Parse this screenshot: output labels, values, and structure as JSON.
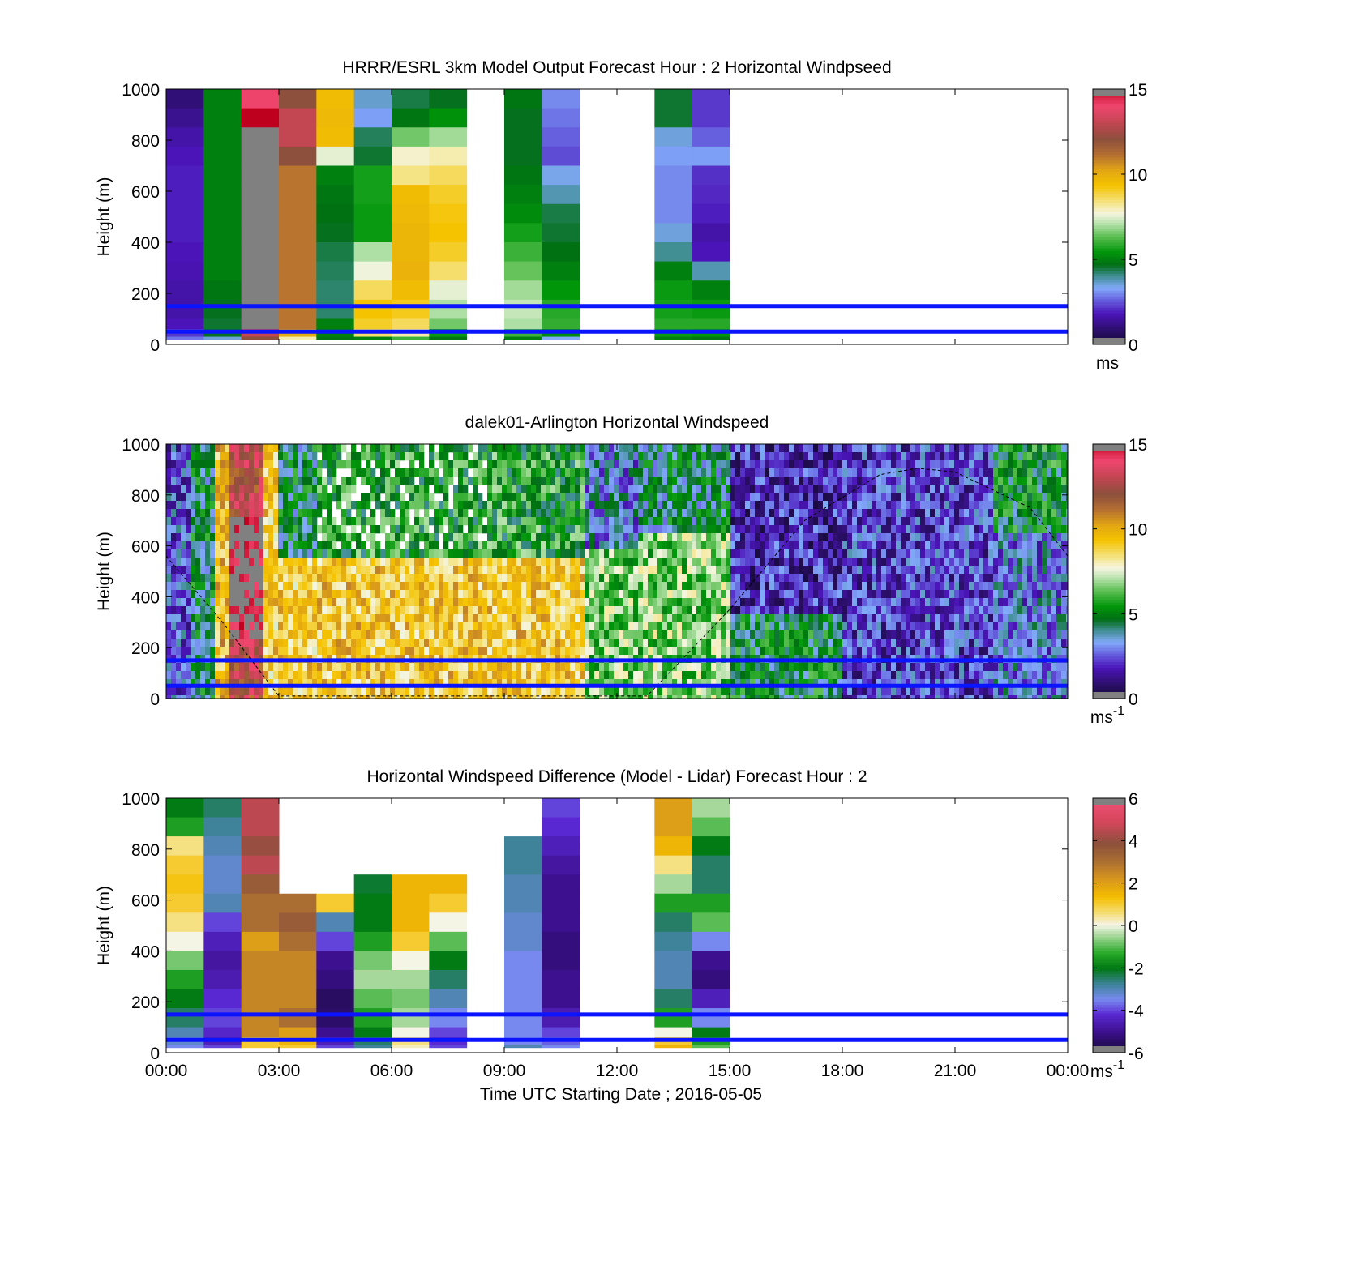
{
  "figure": {
    "xlabel": "Time UTC  Starting Date ; 2016-05-05"
  },
  "chart_data": [
    {
      "type": "heatmap",
      "title": "HRRR/ESRL 3km Model Output   Forecast Hour : 2 Horizontal Windpseed",
      "ylabel": "Height (m)",
      "xlim_hours": [
        0,
        24
      ],
      "ylim": [
        0,
        1000
      ],
      "yticks": [
        0,
        200,
        400,
        600,
        800,
        1000
      ],
      "xticks_labels": [
        "00:00",
        "03:00",
        "06:00",
        "09:00",
        "12:00",
        "15:00",
        "18:00",
        "21:00",
        "00:00"
      ],
      "show_xtick_labels": false,
      "heights": [
        1000,
        925,
        850,
        775,
        700,
        625,
        550,
        475,
        400,
        325,
        250,
        175,
        100,
        60,
        30
      ],
      "columns": [
        {
          "hour": 0,
          "values": [
            1.0,
            1.3,
            1.6,
            1.8,
            1.9,
            1.9,
            1.9,
            1.9,
            1.8,
            1.7,
            1.6,
            1.6,
            1.8,
            2.2,
            2.8
          ]
        },
        {
          "hour": 1,
          "values": [
            5.0,
            5.0,
            5.0,
            5.0,
            5.0,
            5.0,
            5.0,
            5.0,
            5.0,
            5.0,
            4.8,
            4.6,
            4.5,
            4.6,
            3.5
          ]
        },
        {
          "hour": 2,
          "values": [
            14.0,
            15.0,
            16.0,
            16.0,
            16.0,
            16.0,
            16.0,
            16.0,
            16.0,
            16.0,
            16.0,
            16.0,
            16.0,
            13.0,
            12.0
          ]
        },
        {
          "hour": 3,
          "values": [
            12.0,
            13.0,
            13.0,
            12.0,
            11.0,
            11.0,
            11.0,
            11.0,
            11.0,
            11.0,
            11.0,
            11.0,
            11.0,
            10.0,
            8.0
          ]
        },
        {
          "hour": 4,
          "values": [
            9.5,
            9.6,
            9.5,
            7.5,
            5.0,
            4.8,
            4.7,
            4.6,
            4.4,
            4.3,
            4.2,
            4.2,
            5.0,
            5.0,
            4.8
          ]
        },
        {
          "hour": 5,
          "values": [
            3.6,
            3.2,
            4.3,
            4.5,
            5.6,
            5.6,
            5.5,
            5.5,
            7.0,
            7.6,
            8.6,
            9.3,
            9.0,
            8.5,
            5.0
          ]
        },
        {
          "hour": 6,
          "values": [
            4.4,
            4.8,
            6.5,
            7.8,
            8.3,
            9.5,
            9.6,
            9.7,
            9.7,
            9.8,
            9.5,
            9.1,
            8.6,
            8.0,
            6.0
          ]
        },
        {
          "hour": 7,
          "values": [
            4.6,
            5.3,
            6.9,
            8.0,
            8.6,
            9.0,
            9.2,
            9.3,
            9.0,
            8.5,
            7.5,
            7.0,
            6.5,
            5.5,
            4.8
          ]
        },
        {
          "hour": 9,
          "values": [
            4.8,
            4.6,
            4.6,
            4.6,
            4.8,
            5.0,
            5.2,
            5.6,
            6.0,
            6.4,
            6.9,
            7.2,
            7.0,
            6.0,
            5.0
          ]
        },
        {
          "hour": 10,
          "values": [
            3.0,
            2.8,
            2.6,
            2.4,
            3.4,
            3.8,
            4.4,
            4.5,
            4.7,
            5.0,
            5.4,
            5.8,
            5.9,
            5.2,
            3.3
          ]
        },
        {
          "hour": 13,
          "values": [
            4.5,
            4.5,
            3.5,
            3.2,
            3.0,
            3.0,
            3.0,
            3.5,
            4.0,
            5.0,
            5.5,
            5.6,
            5.8,
            5.5,
            5.0
          ]
        },
        {
          "hour": 14,
          "values": [
            2.2,
            2.2,
            2.6,
            3.2,
            2.1,
            2.0,
            1.9,
            1.6,
            1.8,
            3.8,
            5.0,
            5.5,
            5.8,
            5.4,
            4.8
          ]
        }
      ],
      "cmap_range": [
        0,
        15
      ],
      "cbar_ticks": [
        0,
        5,
        10,
        15
      ],
      "cbar_unit": "ms",
      "cbar_unit_sup": "",
      "hlines_m": [
        150,
        50
      ]
    },
    {
      "type": "heatmap",
      "title": "dalek01-Arlington  Horizontal Windspeed",
      "ylabel": "Height (m)",
      "xlim_hours": [
        0,
        24
      ],
      "ylim": [
        0,
        1000
      ],
      "yticks": [
        0,
        200,
        400,
        600,
        800,
        1000
      ],
      "xticks_labels": [
        "00:00",
        "03:00",
        "06:00",
        "09:00",
        "12:00",
        "15:00",
        "18:00",
        "21:00",
        "00:00"
      ],
      "show_xtick_labels": false,
      "cmap_range": [
        0,
        15
      ],
      "cbar_ticks": [
        0,
        5,
        10,
        15
      ],
      "cbar_unit": "ms",
      "cbar_unit_sup": "-1",
      "hlines_m": [
        150,
        50
      ],
      "boundary_layer_curve": [
        [
          0.0,
          560
        ],
        [
          1.5,
          300
        ],
        [
          3.0,
          10
        ],
        [
          12.8,
          10
        ],
        [
          15.0,
          350
        ],
        [
          17.0,
          700
        ],
        [
          19.0,
          880
        ],
        [
          20.0,
          905
        ],
        [
          21.0,
          890
        ],
        [
          23.0,
          750
        ],
        [
          24.0,
          560
        ]
      ]
    },
    {
      "type": "heatmap",
      "title": "Horizontal Windspeed Difference (Model - Lidar) Forecast Hour : 2",
      "ylabel": "Height (m)",
      "xlim_hours": [
        0,
        24
      ],
      "ylim": [
        0,
        1000
      ],
      "yticks": [
        0,
        200,
        400,
        600,
        800,
        1000
      ],
      "xticks_labels": [
        "00:00",
        "03:00",
        "06:00",
        "09:00",
        "12:00",
        "15:00",
        "18:00",
        "21:00",
        "00:00"
      ],
      "show_xtick_labels": true,
      "heights": [
        1000,
        925,
        850,
        775,
        700,
        625,
        550,
        475,
        400,
        325,
        250,
        175,
        100,
        60,
        30
      ],
      "columns": [
        {
          "hour": 0,
          "values": [
            -2.0,
            -1.5,
            0.5,
            1.0,
            1.2,
            1.0,
            0.5,
            0.0,
            -0.8,
            -1.5,
            -2.0,
            -2.5,
            -3.0,
            -3.2,
            -3.5
          ]
        },
        {
          "hour": 1,
          "values": [
            -2.5,
            -2.8,
            -3.0,
            -3.2,
            -3.2,
            -3.0,
            -4.0,
            -4.5,
            -4.8,
            -4.6,
            -4.2,
            -4.0,
            -4.3,
            -4.5,
            -4.0
          ]
        },
        {
          "hour": 2,
          "values": [
            4.5,
            4.5,
            4.0,
            4.5,
            3.5,
            3.0,
            3.0,
            2.0,
            2.5,
            2.5,
            2.5,
            2.5,
            2.5,
            1.0,
            1.0
          ]
        },
        {
          "hour": 3,
          "values": [
            null,
            null,
            null,
            null,
            null,
            3.0,
            3.5,
            3.0,
            2.5,
            2.5,
            2.5,
            3.0,
            2.0,
            1.5,
            1.0
          ]
        },
        {
          "hour": 4,
          "values": [
            null,
            null,
            null,
            null,
            null,
            1.0,
            -3.0,
            -4.0,
            -5.0,
            -5.2,
            -5.5,
            -5.4,
            -5.0,
            -4.5,
            -4.0
          ]
        },
        {
          "hour": 5,
          "values": [
            null,
            null,
            null,
            null,
            -2.2,
            -2.0,
            -2.0,
            -1.5,
            -0.8,
            -0.5,
            -1.0,
            -1.5,
            -2.0,
            -2.5,
            -2.8
          ]
        },
        {
          "hour": 6,
          "values": [
            null,
            null,
            null,
            null,
            1.5,
            1.5,
            1.5,
            1.0,
            0.0,
            -0.5,
            -0.8,
            -0.5,
            0.0,
            0.5,
            0.2
          ]
        },
        {
          "hour": 7,
          "values": [
            null,
            null,
            null,
            null,
            1.5,
            1.0,
            0.0,
            -1.0,
            -2.0,
            -2.5,
            -3.0,
            -3.5,
            -4.0,
            -4.2,
            -4.0
          ]
        },
        {
          "hour": 9,
          "values": [
            null,
            null,
            -2.8,
            -2.8,
            -3.0,
            -3.0,
            -3.2,
            -3.2,
            -3.5,
            -3.5,
            -3.5,
            -3.5,
            -3.5,
            -3.5,
            -3.0
          ]
        },
        {
          "hour": 10,
          "values": [
            -4.0,
            -4.2,
            -4.5,
            -4.8,
            -5.0,
            -5.0,
            -5.0,
            -5.2,
            -5.2,
            -5.0,
            -5.0,
            -4.6,
            -4.0,
            -3.8,
            -3.5
          ]
        },
        {
          "hour": 13,
          "values": [
            2.0,
            2.0,
            1.5,
            0.5,
            -0.5,
            -1.5,
            -2.5,
            -2.8,
            -3.0,
            -3.0,
            -2.5,
            -1.5,
            0.0,
            1.0,
            1.5
          ]
        },
        {
          "hour": 14,
          "values": [
            -0.5,
            -1.0,
            -2.0,
            -2.5,
            -2.5,
            -1.5,
            -1.0,
            -3.5,
            -5.0,
            -5.2,
            -4.5,
            -3.5,
            -2.0,
            -1.5,
            -1.0
          ]
        }
      ],
      "cmap_range": [
        -6,
        6
      ],
      "cbar_ticks": [
        -6,
        -4,
        -2,
        0,
        2,
        4,
        6
      ],
      "cbar_unit": "ms",
      "cbar_unit_sup": "-1",
      "hlines_m": [
        150,
        50
      ]
    }
  ]
}
